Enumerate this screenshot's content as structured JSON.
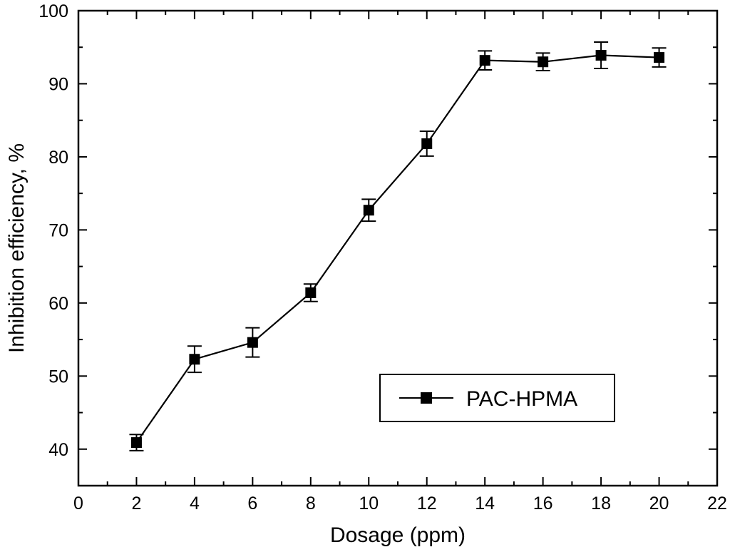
{
  "chart_data": {
    "type": "line",
    "title": "",
    "xlabel": "Dosage (ppm)",
    "ylabel": "Inhibition efficiency, %",
    "xlim": [
      0,
      22
    ],
    "ylim": [
      35,
      100
    ],
    "x_ticks": [
      0,
      2,
      4,
      6,
      8,
      10,
      12,
      14,
      16,
      18,
      20,
      22
    ],
    "y_ticks": [
      40,
      50,
      60,
      70,
      80,
      90,
      100
    ],
    "grid": false,
    "legend_position": "bottom-right",
    "series": [
      {
        "name": "PAC-HPMA",
        "color": "#000000",
        "marker": "square",
        "x": [
          2,
          4,
          6,
          8,
          10,
          12,
          14,
          16,
          18,
          20
        ],
        "y": [
          40.9,
          52.3,
          54.6,
          61.4,
          72.7,
          81.8,
          93.2,
          93.0,
          93.9,
          93.6
        ],
        "error": [
          1.1,
          1.8,
          2.0,
          1.2,
          1.5,
          1.7,
          1.3,
          1.2,
          1.8,
          1.3
        ]
      }
    ]
  }
}
